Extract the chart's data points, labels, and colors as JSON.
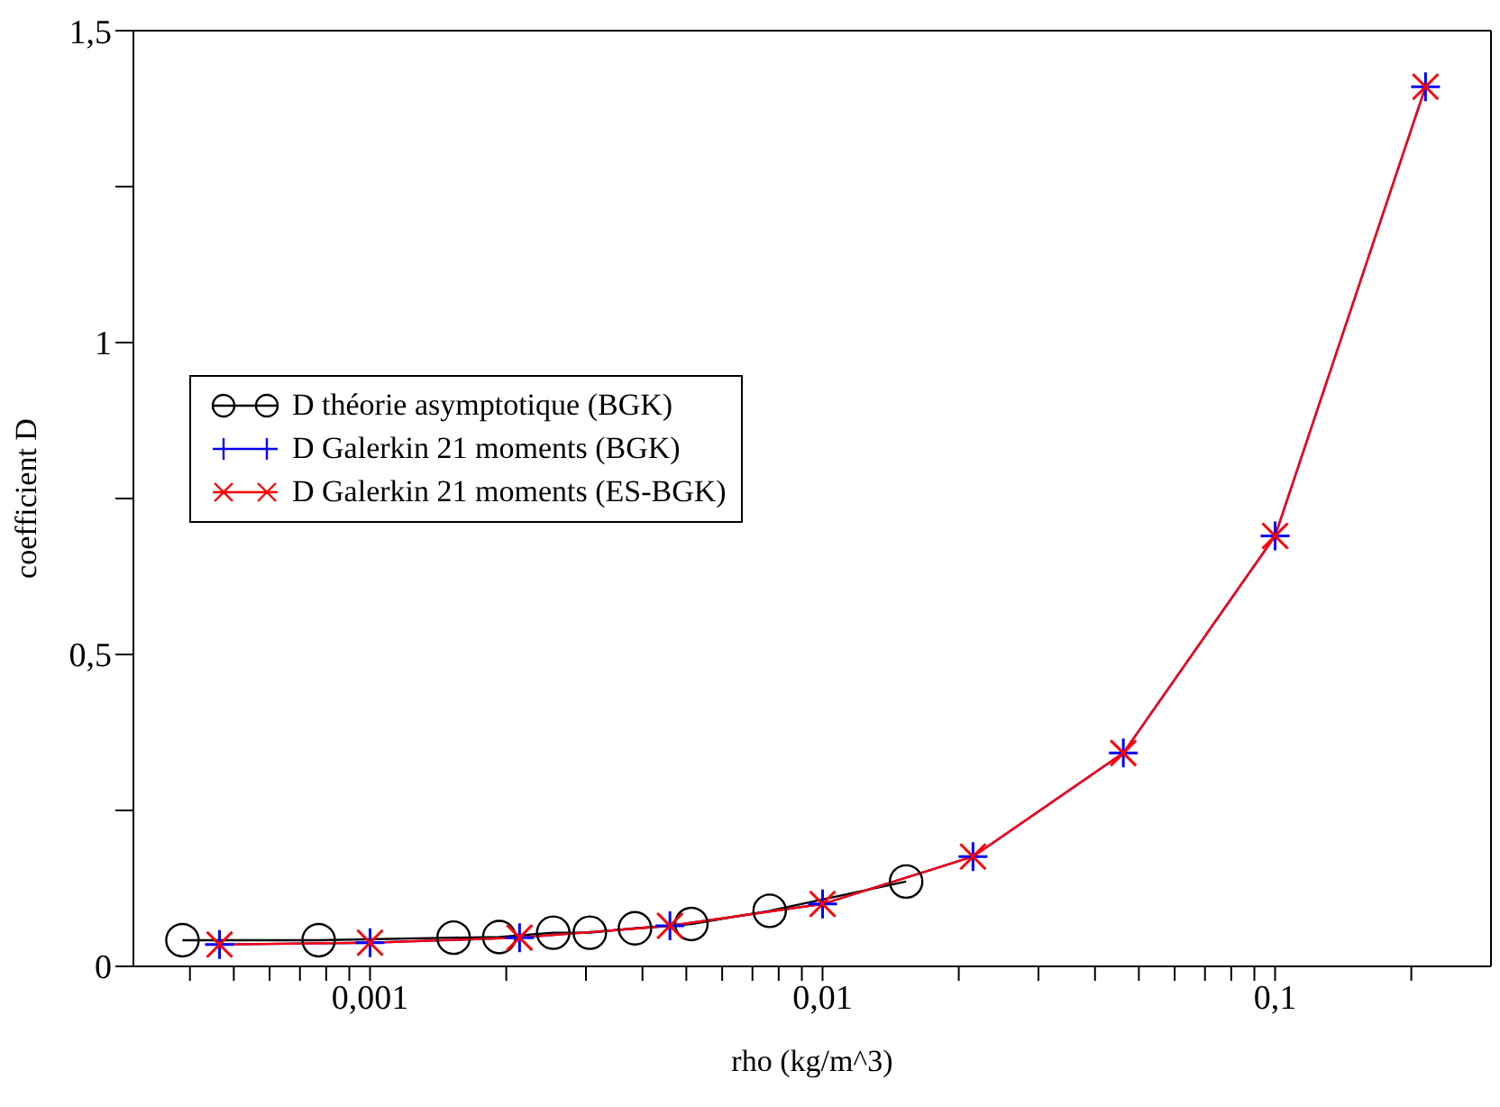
{
  "chart_data": {
    "type": "line",
    "xlabel": "rho (kg/m^3)",
    "ylabel": "coefficient D",
    "log": "x",
    "legend": "left",
    "line_style": "solid",
    "xlim": [
      0.0003,
      0.3
    ],
    "ylim": [
      0,
      1.5
    ],
    "xticks": [
      {
        "value": 0.0004,
        "label": null
      },
      {
        "value": 0.0005,
        "label": null
      },
      {
        "value": 0.0006,
        "label": null
      },
      {
        "value": 0.0007,
        "label": null
      },
      {
        "value": 0.0008,
        "label": null
      },
      {
        "value": 0.0009,
        "label": null
      },
      {
        "value": 0.001,
        "label": "0,001"
      },
      {
        "value": 0.002,
        "label": null
      },
      {
        "value": 0.003,
        "label": null
      },
      {
        "value": 0.004,
        "label": null
      },
      {
        "value": 0.005,
        "label": null
      },
      {
        "value": 0.006,
        "label": null
      },
      {
        "value": 0.007,
        "label": null
      },
      {
        "value": 0.008,
        "label": null
      },
      {
        "value": 0.009,
        "label": null
      },
      {
        "value": 0.01,
        "label": "0,01"
      },
      {
        "value": 0.02,
        "label": null
      },
      {
        "value": 0.03,
        "label": null
      },
      {
        "value": 0.04,
        "label": null
      },
      {
        "value": 0.05,
        "label": null
      },
      {
        "value": 0.06,
        "label": null
      },
      {
        "value": 0.07,
        "label": null
      },
      {
        "value": 0.08,
        "label": null
      },
      {
        "value": 0.09,
        "label": null
      },
      {
        "value": 0.1,
        "label": "0,1"
      },
      {
        "value": 0.2,
        "label": null
      }
    ],
    "yticks": [
      0,
      {
        "value": 0.25,
        "label": null
      },
      {
        "value": 0.5,
        "label": "0,5"
      },
      {
        "value": 0.75,
        "label": null
      },
      1,
      {
        "value": 1.25,
        "label": null
      },
      {
        "value": 1.5,
        "label": "1,5"
      }
    ],
    "series": [
      {
        "name": "D théorie asymptotique (BGK)",
        "color": "#000000",
        "marker": "circle",
        "x": [
          0.000385,
          0.00077,
          0.00153,
          0.00193,
          0.00254,
          0.00306,
          0.00385,
          0.00513,
          0.00764,
          0.0153
        ],
        "values": [
          0.042,
          0.042,
          0.046,
          0.047,
          0.054,
          0.054,
          0.061,
          0.068,
          0.089,
          0.136
        ]
      },
      {
        "name": "D Galerkin 21 moments (BGK)",
        "color": "#0000ff",
        "marker": "cross",
        "x": [
          0.000465,
          0.001,
          0.00214,
          0.0046,
          0.01,
          0.0215,
          0.0462,
          0.1,
          0.215
        ],
        "values": [
          0.035,
          0.038,
          0.046,
          0.065,
          0.1,
          0.176,
          0.342,
          0.69,
          1.41
        ]
      },
      {
        "name": "D Galerkin 21 moments (ES-BGK)",
        "color": "#ff0000",
        "marker": "x",
        "x": [
          0.000465,
          0.001,
          0.00214,
          0.0046,
          0.01,
          0.0215,
          0.0462,
          0.1,
          0.215
        ],
        "values": [
          0.035,
          0.038,
          0.046,
          0.065,
          0.1,
          0.176,
          0.342,
          0.69,
          1.41
        ]
      }
    ]
  }
}
